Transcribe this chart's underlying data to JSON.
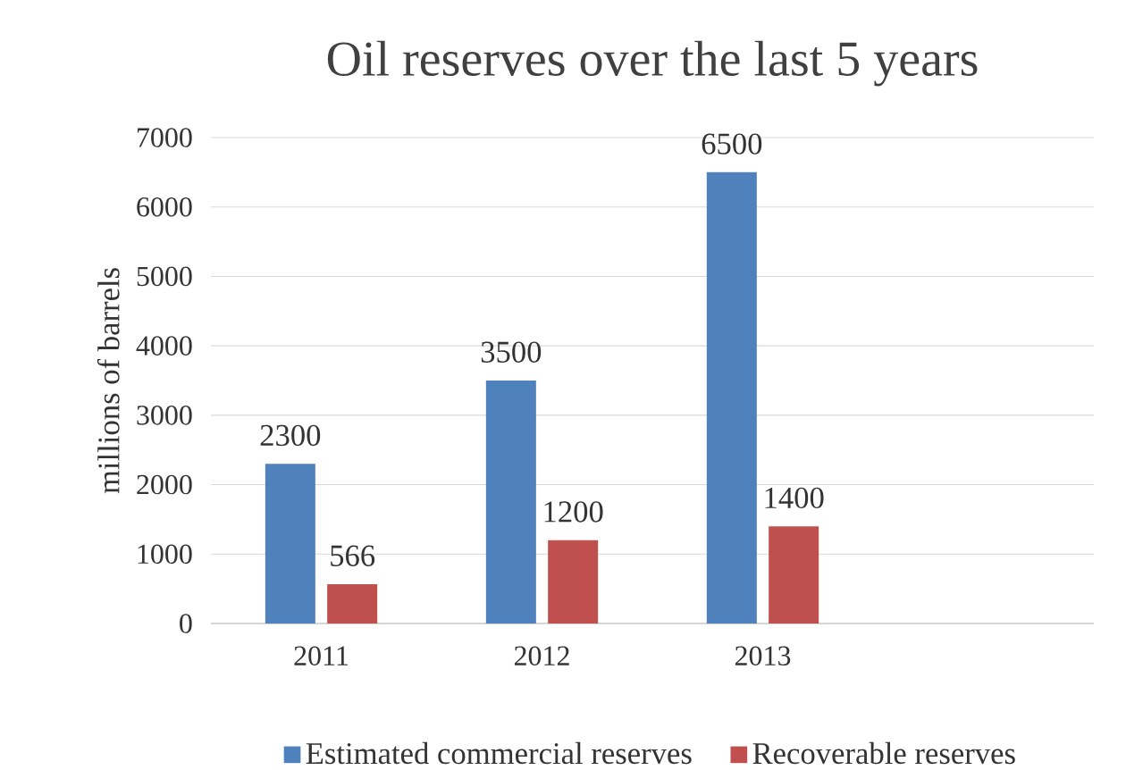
{
  "chart_data": {
    "type": "bar",
    "title": "Oil reserves over the last 5 years",
    "ylabel": "millions of barrels",
    "categories": [
      "2011",
      "2012",
      "2013",
      null
    ],
    "series": [
      {
        "name": "Estimated commercial reserves",
        "color": "#4f81bd",
        "values": [
          2300,
          3500,
          6500,
          null
        ]
      },
      {
        "name": "Recoverable reserves",
        "color": "#c0504d",
        "values": [
          566,
          1200,
          1400,
          null
        ]
      }
    ],
    "ylim": [
      0,
      7000
    ],
    "yticks": [
      0,
      1000,
      2000,
      3000,
      4000,
      5000,
      6000,
      7000
    ],
    "grid": "y",
    "legend": "bottom",
    "data_labels": true
  }
}
